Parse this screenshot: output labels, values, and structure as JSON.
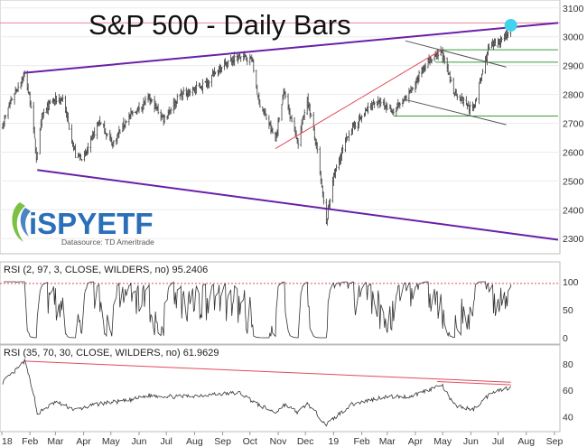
{
  "chart_data": [
    {
      "type": "ohlc",
      "title": "S&P 500 - Daily Bars",
      "y_axis_side": "right",
      "ylim": [
        2260,
        3115
      ],
      "y_ticks": [
        2300,
        2400,
        2500,
        2600,
        2700,
        2800,
        2900,
        3000,
        3100
      ],
      "x_range": [
        "2018-01-01",
        "2019-09-05"
      ],
      "x_tick_labels": [
        "18",
        "Feb",
        "Mar",
        "Apr",
        "May",
        "Jun",
        "Jul",
        "Aug",
        "Sep",
        "Oct",
        "Nov",
        "Dec",
        "19",
        "Feb",
        "Mar",
        "Apr",
        "May",
        "Jun",
        "Jul",
        "Aug",
        "Sep"
      ],
      "x_tick_dates": [
        "2018-01-01",
        "2018-02-01",
        "2018-03-01",
        "2018-04-01",
        "2018-05-01",
        "2018-06-01",
        "2018-07-01",
        "2018-08-01",
        "2018-09-01",
        "2018-10-01",
        "2018-11-01",
        "2018-12-01",
        "2019-01-01",
        "2019-02-01",
        "2019-03-01",
        "2019-04-01",
        "2019-05-01",
        "2019-06-01",
        "2019-07-01",
        "2019-08-01",
        "2019-09-01"
      ],
      "close_path": [
        [
          "2018-01-02",
          2695
        ],
        [
          "2018-01-12",
          2786
        ],
        [
          "2018-01-26",
          2872
        ],
        [
          "2018-02-02",
          2762
        ],
        [
          "2018-02-08",
          2581
        ],
        [
          "2018-02-15",
          2731
        ],
        [
          "2018-02-26",
          2779
        ],
        [
          "2018-03-09",
          2786
        ],
        [
          "2018-03-23",
          2588
        ],
        [
          "2018-04-02",
          2582
        ],
        [
          "2018-04-18",
          2708
        ],
        [
          "2018-05-03",
          2629
        ],
        [
          "2018-05-18",
          2712
        ],
        [
          "2018-06-12",
          2786
        ],
        [
          "2018-06-28",
          2716
        ],
        [
          "2018-07-16",
          2798
        ],
        [
          "2018-07-31",
          2816
        ],
        [
          "2018-08-14",
          2840
        ],
        [
          "2018-08-31",
          2901
        ],
        [
          "2018-09-20",
          2930
        ],
        [
          "2018-10-03",
          2925
        ],
        [
          "2018-10-10",
          2785
        ],
        [
          "2018-10-29",
          2641
        ],
        [
          "2018-11-07",
          2813
        ],
        [
          "2018-11-23",
          2633
        ],
        [
          "2018-12-03",
          2790
        ],
        [
          "2018-12-14",
          2600
        ],
        [
          "2018-12-24",
          2351
        ],
        [
          "2018-12-31",
          2507
        ],
        [
          "2019-01-18",
          2670
        ],
        [
          "2019-02-15",
          2775
        ],
        [
          "2019-03-08",
          2743
        ],
        [
          "2019-03-25",
          2798
        ],
        [
          "2019-04-12",
          2907
        ],
        [
          "2019-04-30",
          2946
        ],
        [
          "2019-05-13",
          2812
        ],
        [
          "2019-06-03",
          2744
        ],
        [
          "2019-06-20",
          2954
        ],
        [
          "2019-07-12",
          3013
        ],
        [
          "2019-07-15",
          3014
        ]
      ],
      "annotations": {
        "marker": {
          "date": "2019-07-15",
          "value": 3040,
          "color": "#40d3ee"
        },
        "horizontal_line": {
          "value": 3048,
          "color": "#e58a9a"
        },
        "purple_upper_trendline": {
          "from": [
            "2018-01-26",
            2875
          ],
          "to": [
            "2019-09-05",
            3048
          ],
          "color": "#6a1fa8"
        },
        "purple_lower_trendline": {
          "from": [
            "2018-02-09",
            2538
          ],
          "to": [
            "2019-09-05",
            2296
          ],
          "color": "#6a1fa8"
        },
        "red_support_line": {
          "from": [
            "2018-10-29",
            2612
          ],
          "to": [
            "2019-04-30",
            2955
          ],
          "color": "#e04b5a"
        },
        "gray_channel_upper": {
          "from": [
            "2019-03-21",
            2986
          ],
          "to": [
            "2019-07-10",
            2895
          ],
          "color": "#555555"
        },
        "gray_channel_lower": {
          "from": [
            "2019-03-21",
            2782
          ],
          "to": [
            "2019-07-10",
            2695
          ],
          "color": "#555555"
        },
        "green_levels": [
          {
            "value": 2955,
            "from": "2019-04-30",
            "to": "2019-09-05"
          },
          {
            "value": 2912,
            "from": "2019-04-23",
            "to": "2019-09-05"
          },
          {
            "value": 2725,
            "from": "2019-03-08",
            "to": "2019-09-05"
          }
        ],
        "color_green": "#3c9a3c"
      }
    },
    {
      "type": "line",
      "title": "RSI (2, 97, 3, CLOSE, WILDERS, no) 95.2406",
      "series": [
        {
          "values_note": "",
          "color": "#333333"
        }
      ],
      "ylim": [
        0,
        100
      ],
      "y_ticks": [
        0,
        50,
        100
      ],
      "y_tick_labels": [
        "0",
        "50",
        "100"
      ],
      "dotted_reference": {
        "value": 97,
        "color": "#e04b5a"
      },
      "last_value": 95.2406
    },
    {
      "type": "line",
      "title": "RSI (35, 70, 30, CLOSE, WILDERS, no) 61.9629",
      "series": [
        {
          "color": "#333333"
        }
      ],
      "ylim": [
        32,
        86
      ],
      "y_ticks": [
        40,
        60,
        80
      ],
      "y_tick_labels": [
        "40",
        "60",
        "80"
      ],
      "path": [
        [
          "2018-01-02",
          66
        ],
        [
          "2018-01-15",
          74
        ],
        [
          "2018-01-26",
          82
        ],
        [
          "2018-02-05",
          58
        ],
        [
          "2018-02-09",
          42
        ],
        [
          "2018-03-01",
          51
        ],
        [
          "2018-03-23",
          45
        ],
        [
          "2018-04-20",
          50
        ],
        [
          "2018-05-20",
          52
        ],
        [
          "2018-06-12",
          56
        ],
        [
          "2018-07-15",
          55
        ],
        [
          "2018-08-25",
          57
        ],
        [
          "2018-09-20",
          58
        ],
        [
          "2018-10-10",
          49
        ],
        [
          "2018-10-29",
          43
        ],
        [
          "2018-11-08",
          49
        ],
        [
          "2018-11-23",
          43
        ],
        [
          "2018-12-03",
          50
        ],
        [
          "2018-12-24",
          34
        ],
        [
          "2019-01-20",
          49
        ],
        [
          "2019-02-25",
          55
        ],
        [
          "2019-03-25",
          55
        ],
        [
          "2019-04-30",
          64
        ],
        [
          "2019-05-13",
          49
        ],
        [
          "2019-06-03",
          45
        ],
        [
          "2019-06-25",
          59
        ],
        [
          "2019-07-15",
          62
        ]
      ],
      "red_lines": [
        {
          "from": [
            "2018-01-26",
            82
          ],
          "to": [
            "2019-07-15",
            66
          ]
        },
        {
          "from": [
            "2019-04-25",
            66.5
          ],
          "to": [
            "2019-07-15",
            64
          ]
        }
      ],
      "last_value": 61.9629
    }
  ],
  "logo": {
    "brand": "iSPYETF",
    "tagline": "Datasource: TD Ameritrade",
    "green": "#7bc142",
    "blue": "#2a6fb7"
  }
}
